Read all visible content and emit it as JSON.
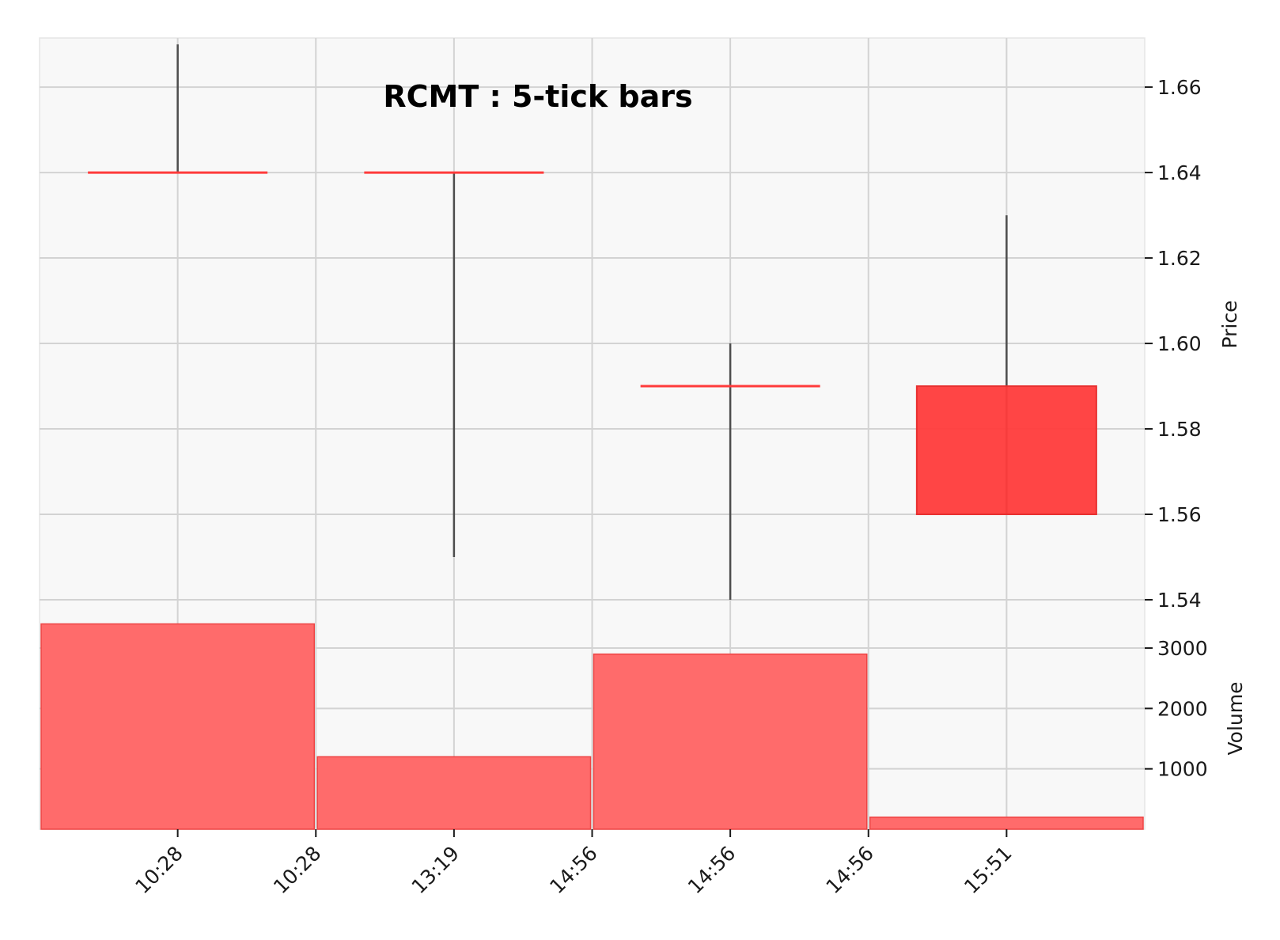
{
  "chart_data": {
    "type": "candlestick",
    "title": "RCMT : 5-tick bars",
    "colors": {
      "down": "#ff3b3b",
      "wick": "#4d4d4d",
      "volume": "#ff6b6b",
      "grid": "#d3d3d3",
      "panel_bg": "#f8f8f8"
    },
    "x_tick_labels": [
      "10:28",
      "10:28",
      "13:19",
      "14:56",
      "14:56",
      "14:56",
      "15:51"
    ],
    "candles": [
      {
        "open": 1.64,
        "high": 1.67,
        "low": 1.64,
        "close": 1.64,
        "volume": 3400
      },
      {
        "open": 1.64,
        "high": 1.64,
        "low": 1.55,
        "close": 1.64,
        "volume": 1200
      },
      {
        "open": 1.59,
        "high": 1.6,
        "low": 1.54,
        "close": 1.59,
        "volume": 2900
      },
      {
        "open": 1.59,
        "high": 1.63,
        "low": 1.56,
        "close": 1.56,
        "volume": 200
      }
    ],
    "price_panel": {
      "ylabel": "Price",
      "ylim": [
        1.54,
        1.6715
      ],
      "yticks": [
        1.54,
        1.56,
        1.58,
        1.6,
        1.62,
        1.64,
        1.66
      ],
      "ytick_labels": [
        "1.54",
        "1.56",
        "1.58",
        "1.60",
        "1.62",
        "1.64",
        "1.66"
      ]
    },
    "volume_panel": {
      "ylabel": "Volume",
      "ylim": [
        0,
        3800
      ],
      "yticks": [
        1000,
        2000,
        3000
      ],
      "ytick_labels": [
        "1000",
        "2000",
        "3000"
      ]
    },
    "grid": true
  }
}
